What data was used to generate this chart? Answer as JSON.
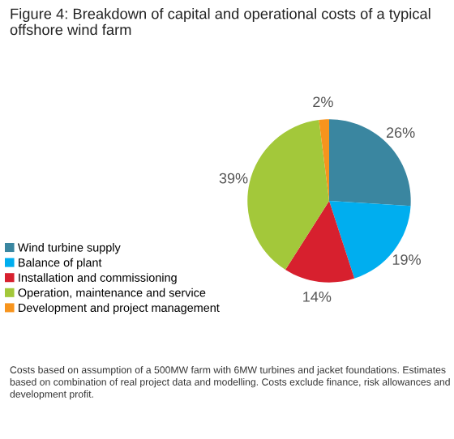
{
  "chart_data": {
    "type": "pie",
    "title": "Figure 4: Breakdown of capital and operational costs of a typical offshore wind farm",
    "categories": [
      "Wind turbine supply",
      "Balance of plant",
      "Installation and commissioning",
      "Operation, maintenance and service",
      "Development and project management"
    ],
    "values": [
      26,
      19,
      14,
      39,
      2
    ],
    "colors": [
      "#3a86a0",
      "#00aeef",
      "#d7202e",
      "#a3c83a",
      "#f7941d"
    ],
    "value_labels": [
      "26%",
      "19%",
      "14%",
      "39%",
      "2%"
    ],
    "legend": "left",
    "annotations": [
      "Costs based on assumption of a 500MW farm with 6MW turbines and jacket foundations. Estimates based on combination of real project data and modelling. Costs exclude finance, risk allowances and development profit."
    ]
  }
}
